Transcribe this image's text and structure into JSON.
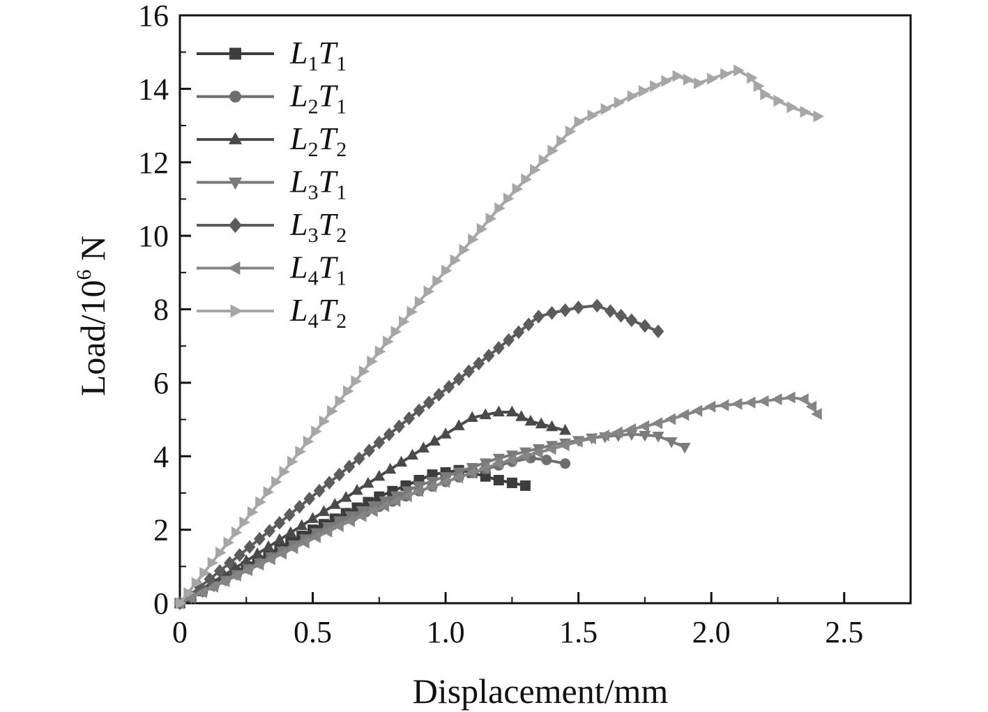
{
  "chart_data": {
    "type": "line",
    "title": "",
    "xlabel": "Displacement/mm",
    "ylabel": {
      "prefix": "Load/10",
      "sup": "6",
      "suffix": " N"
    },
    "xlim": [
      0,
      2.75
    ],
    "ylim": [
      0,
      16
    ],
    "x_ticks": [
      {
        "value": 0,
        "label": "0"
      },
      {
        "value": 0.5,
        "label": "0.5"
      },
      {
        "value": 1.0,
        "label": "1.0"
      },
      {
        "value": 1.5,
        "label": "1.5"
      },
      {
        "value": 2.0,
        "label": "2.0"
      },
      {
        "value": 2.5,
        "label": "2.5"
      }
    ],
    "y_ticks": [
      {
        "value": 0,
        "label": "0"
      },
      {
        "value": 2,
        "label": "2"
      },
      {
        "value": 4,
        "label": "4"
      },
      {
        "value": 6,
        "label": "6"
      },
      {
        "value": 8,
        "label": "8"
      },
      {
        "value": 10,
        "label": "10"
      },
      {
        "value": 12,
        "label": "12"
      },
      {
        "value": 14,
        "label": "14"
      },
      {
        "value": 16,
        "label": "16"
      }
    ],
    "grid": false,
    "legend_position": "top-left",
    "series": [
      {
        "name": "L1T1",
        "label_main": "L",
        "label_sub1": "1",
        "label_mid": "T",
        "label_sub2": "1",
        "marker": "square",
        "color": "#3c3c3c",
        "points": [
          [
            0,
            0
          ],
          [
            0.25,
            1.0
          ],
          [
            0.5,
            2.0
          ],
          [
            0.75,
            2.9
          ],
          [
            0.95,
            3.5
          ],
          [
            1.05,
            3.62
          ],
          [
            1.1,
            3.55
          ],
          [
            1.2,
            3.35
          ],
          [
            1.3,
            3.2
          ]
        ]
      },
      {
        "name": "L2T1",
        "label_main": "L",
        "label_sub1": "2",
        "label_mid": "T",
        "label_sub2": "1",
        "marker": "circle",
        "color": "#6e6e6e",
        "points": [
          [
            0,
            0
          ],
          [
            0.3,
            1.1
          ],
          [
            0.6,
            2.2
          ],
          [
            0.9,
            3.05
          ],
          [
            1.1,
            3.55
          ],
          [
            1.25,
            3.85
          ],
          [
            1.32,
            3.95
          ],
          [
            1.38,
            3.9
          ],
          [
            1.45,
            3.8
          ]
        ]
      },
      {
        "name": "L2T2",
        "label_main": "L",
        "label_sub1": "2",
        "label_mid": "T",
        "label_sub2": "2",
        "marker": "triangle-up",
        "color": "#4a4a4a",
        "points": [
          [
            0,
            0
          ],
          [
            0.25,
            1.15
          ],
          [
            0.5,
            2.3
          ],
          [
            0.75,
            3.45
          ],
          [
            1.0,
            4.6
          ],
          [
            1.1,
            5.05
          ],
          [
            1.2,
            5.2
          ],
          [
            1.25,
            5.2
          ],
          [
            1.32,
            4.95
          ],
          [
            1.4,
            4.8
          ],
          [
            1.45,
            4.7
          ]
        ]
      },
      {
        "name": "L3T1",
        "label_main": "L",
        "label_sub1": "3",
        "label_mid": "T",
        "label_sub2": "1",
        "marker": "triangle-down",
        "color": "#7a7a7a",
        "points": [
          [
            0,
            0
          ],
          [
            0.3,
            1.1
          ],
          [
            0.6,
            2.25
          ],
          [
            0.9,
            3.2
          ],
          [
            1.2,
            3.95
          ],
          [
            1.4,
            4.3
          ],
          [
            1.55,
            4.5
          ],
          [
            1.7,
            4.6
          ],
          [
            1.8,
            4.55
          ],
          [
            1.85,
            4.4
          ],
          [
            1.9,
            4.25
          ]
        ]
      },
      {
        "name": "L3T2",
        "label_main": "L",
        "label_sub1": "3",
        "label_mid": "T",
        "label_sub2": "2",
        "marker": "diamond",
        "color": "#5c5c5c",
        "points": [
          [
            0,
            0
          ],
          [
            0.3,
            1.75
          ],
          [
            0.6,
            3.5
          ],
          [
            0.9,
            5.25
          ],
          [
            1.2,
            6.95
          ],
          [
            1.35,
            7.8
          ],
          [
            1.4,
            7.9
          ],
          [
            1.5,
            8.05
          ],
          [
            1.57,
            8.1
          ],
          [
            1.62,
            7.95
          ],
          [
            1.7,
            7.7
          ],
          [
            1.75,
            7.55
          ],
          [
            1.8,
            7.4
          ]
        ]
      },
      {
        "name": "L4T1",
        "label_main": "L",
        "label_sub1": "4",
        "label_mid": "T",
        "label_sub2": "1",
        "marker": "triangle-left",
        "color": "#858585",
        "points": [
          [
            0,
            0
          ],
          [
            0.3,
            1.05
          ],
          [
            0.6,
            2.1
          ],
          [
            0.9,
            3.05
          ],
          [
            1.2,
            3.8
          ],
          [
            1.5,
            4.4
          ],
          [
            1.8,
            4.9
          ],
          [
            2.0,
            5.35
          ],
          [
            2.2,
            5.5
          ],
          [
            2.3,
            5.6
          ],
          [
            2.35,
            5.55
          ],
          [
            2.38,
            5.35
          ],
          [
            2.4,
            5.15
          ]
        ]
      },
      {
        "name": "L4T2",
        "label_main": "L",
        "label_sub1": "4",
        "label_mid": "T",
        "label_sub2": "2",
        "marker": "triangle-right",
        "color": "#a6a6a6",
        "points": [
          [
            0,
            0
          ],
          [
            0.3,
            2.75
          ],
          [
            0.6,
            5.5
          ],
          [
            0.9,
            8.2
          ],
          [
            1.2,
            10.75
          ],
          [
            1.5,
            13.1
          ],
          [
            1.7,
            13.8
          ],
          [
            1.87,
            14.35
          ],
          [
            1.95,
            14.15
          ],
          [
            2.05,
            14.4
          ],
          [
            2.1,
            14.5
          ],
          [
            2.15,
            14.3
          ],
          [
            2.2,
            13.85
          ],
          [
            2.3,
            13.5
          ],
          [
            2.4,
            13.25
          ]
        ]
      }
    ]
  }
}
